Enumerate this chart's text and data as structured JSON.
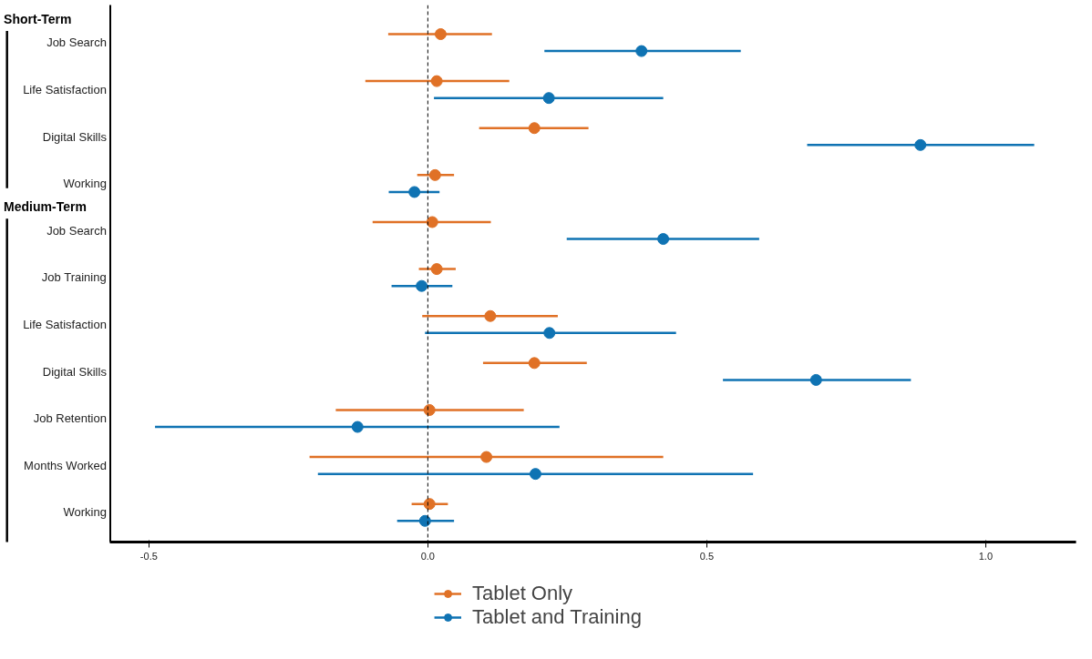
{
  "chart_data": {
    "type": "scatter",
    "orientation": "horizontal",
    "categories": [
      "Job Search",
      "Life Satisfaction",
      "Digital Skills",
      "Working",
      "Job Search",
      "Job Training",
      "Life Satisfaction",
      "Digital Skills",
      "Job Retention",
      "Months Worked",
      "Working"
    ],
    "series": [
      {
        "name": "Tablet Only",
        "color": "#e07126",
        "values": [
          0.023,
          0.016,
          0.191,
          0.013,
          0.008,
          0.016,
          0.112,
          0.191,
          0.003,
          0.105,
          0.003
        ],
        "errors": [
          [
            -0.071,
            0.115
          ],
          [
            -0.112,
            0.146
          ],
          [
            0.092,
            0.288
          ],
          [
            -0.019,
            0.047
          ],
          [
            -0.099,
            0.113
          ],
          [
            -0.016,
            0.05
          ],
          [
            -0.01,
            0.233
          ],
          [
            0.099,
            0.285
          ],
          [
            -0.165,
            0.172
          ],
          [
            -0.212,
            0.422
          ],
          [
            -0.029,
            0.036
          ]
        ]
      },
      {
        "name": "Tablet and Training",
        "color": "#0f73b3",
        "values": [
          0.383,
          0.217,
          0.883,
          -0.024,
          0.422,
          -0.011,
          0.218,
          0.696,
          -0.126,
          0.193,
          -0.005
        ],
        "errors": [
          [
            0.209,
            0.561
          ],
          [
            0.011,
            0.422
          ],
          [
            0.68,
            1.087
          ],
          [
            -0.07,
            0.021
          ],
          [
            0.249,
            0.594
          ],
          [
            -0.065,
            0.044
          ],
          [
            -0.005,
            0.445
          ],
          [
            0.529,
            0.866
          ],
          [
            -0.489,
            0.236
          ],
          [
            -0.197,
            0.583
          ],
          [
            -0.055,
            0.047
          ]
        ]
      }
    ],
    "xlim": [
      -0.57,
      1.162
    ],
    "xticks": [
      {
        "value": -0.5,
        "label": "-0.5"
      },
      {
        "value": 0,
        "label": "0.0"
      },
      0.5,
      {
        "value": 1,
        "label": "1.0"
      }
    ],
    "ref_lines": [
      {
        "axis": "x",
        "value": 0,
        "color": "#000000",
        "line_style": "dashed"
      }
    ],
    "annotations": [
      "Short-Term",
      "Medium-Term"
    ],
    "marker": "circle",
    "grid": false,
    "legend": "bottom"
  }
}
